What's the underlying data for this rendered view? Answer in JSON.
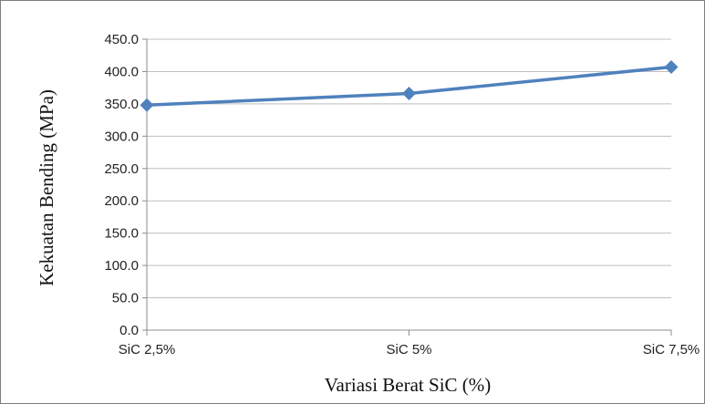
{
  "chart_data": {
    "type": "line",
    "categories": [
      "SiC 2,5%",
      "SiC 5%",
      "SiC 7,5%"
    ],
    "series": [
      {
        "values": [
          348,
          366,
          407
        ],
        "color": "#4f81bd"
      }
    ],
    "yticks": [
      "0.0",
      "50.0",
      "100.0",
      "150.0",
      "200.0",
      "250.0",
      "300.0",
      "350.0",
      "400.0",
      "450.0"
    ],
    "ylim": [
      0,
      450
    ],
    "xlabel": "Variasi Berat SiC (%)",
    "ylabel": "Kekuatan Bending  (MPa)",
    "grid": true,
    "legend": "none",
    "marker": "diamond"
  }
}
